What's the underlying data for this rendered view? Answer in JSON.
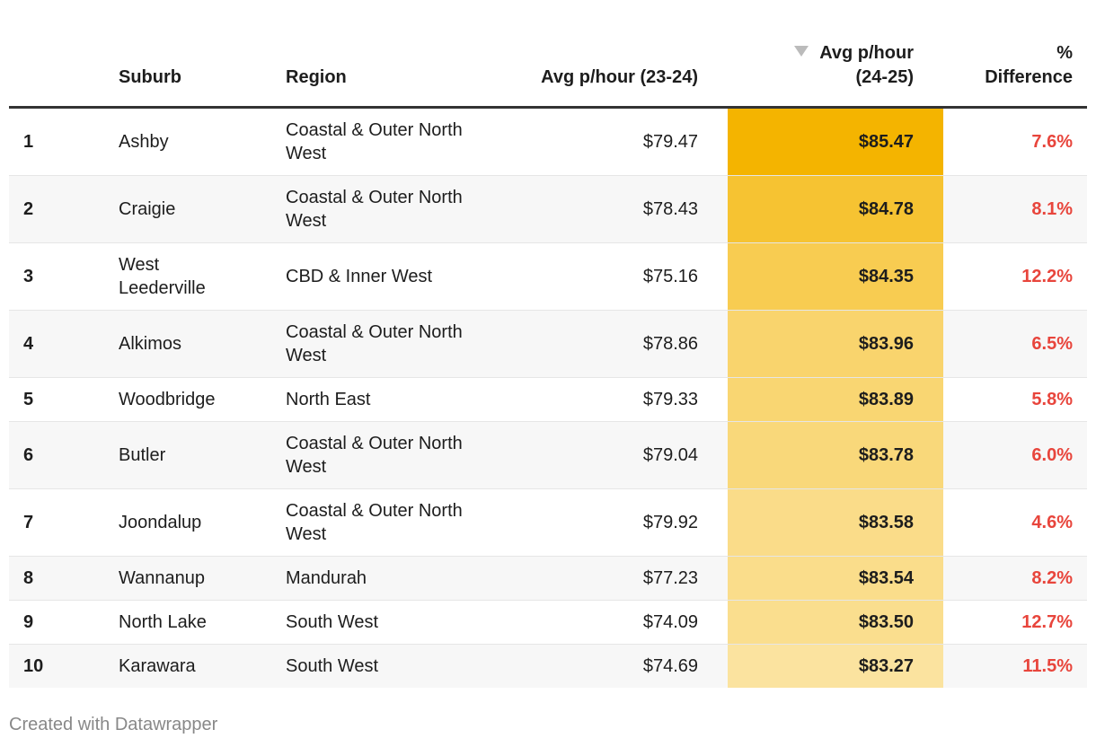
{
  "headers": {
    "rank": "",
    "suburb": "Suburb",
    "region": "Region",
    "avg_2324": "Avg p/hour (23-24)",
    "avg_2425": "Avg p/hour (24-25)",
    "pct": "% Difference"
  },
  "sort_icon": "triangle-down-icon",
  "colors": {
    "scale_max": "#f4b400",
    "scale_min": "#fbe39f",
    "pct_text": "#e8453c"
  },
  "rows": [
    {
      "rank": "1",
      "suburb": "Ashby",
      "region": "Coastal & Outer North West",
      "avg_2324": "$79.47",
      "avg_2425": "$85.47",
      "value": 85.47,
      "pct": "7.6%"
    },
    {
      "rank": "2",
      "suburb": "Craigie",
      "region": "Coastal & Outer North West",
      "avg_2324": "$78.43",
      "avg_2425": "$84.78",
      "value": 84.78,
      "pct": "8.1%"
    },
    {
      "rank": "3",
      "suburb": "West Leederville",
      "region": "CBD & Inner West",
      "avg_2324": "$75.16",
      "avg_2425": "$84.35",
      "value": 84.35,
      "pct": "12.2%"
    },
    {
      "rank": "4",
      "suburb": "Alkimos",
      "region": "Coastal & Outer North West",
      "avg_2324": "$78.86",
      "avg_2425": "$83.96",
      "value": 83.96,
      "pct": "6.5%"
    },
    {
      "rank": "5",
      "suburb": "Woodbridge",
      "region": "North East",
      "avg_2324": "$79.33",
      "avg_2425": "$83.89",
      "value": 83.89,
      "pct": "5.8%"
    },
    {
      "rank": "6",
      "suburb": "Butler",
      "region": "Coastal & Outer North West",
      "avg_2324": "$79.04",
      "avg_2425": "$83.78",
      "value": 83.78,
      "pct": "6.0%"
    },
    {
      "rank": "7",
      "suburb": "Joondalup",
      "region": "Coastal & Outer North West",
      "avg_2324": "$79.92",
      "avg_2425": "$83.58",
      "value": 83.58,
      "pct": "4.6%"
    },
    {
      "rank": "8",
      "suburb": "Wannanup",
      "region": "Mandurah",
      "avg_2324": "$77.23",
      "avg_2425": "$83.54",
      "value": 83.54,
      "pct": "8.2%"
    },
    {
      "rank": "9",
      "suburb": "North Lake",
      "region": "South West",
      "avg_2324": "$74.09",
      "avg_2425": "$83.50",
      "value": 83.5,
      "pct": "12.7%"
    },
    {
      "rank": "10",
      "suburb": "Karawara",
      "region": "South West",
      "avg_2324": "$74.69",
      "avg_2425": "$83.27",
      "value": 83.27,
      "pct": "11.5%"
    }
  ],
  "footer": "Created with Datawrapper"
}
